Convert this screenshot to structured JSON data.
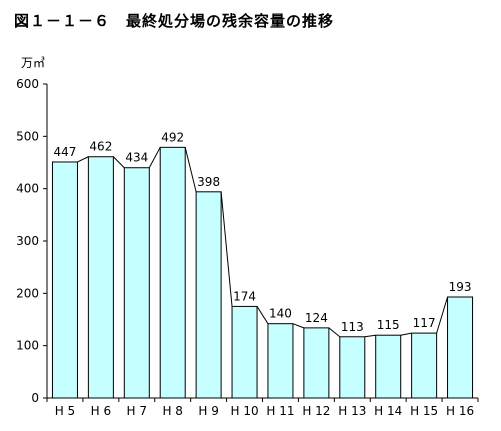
{
  "title": "図１－１－６　最終処分場の残余容量の推移",
  "chart_data": {
    "type": "bar",
    "title": "図１－１－６　最終処分場の残余容量の推移",
    "ylabel": "万㎥",
    "xlabel": "",
    "categories": [
      "H 5",
      "H 6",
      "H 7",
      "H 8",
      "H 9",
      "H 10",
      "H 11",
      "H 12",
      "H 13",
      "H 14",
      "H 15",
      "H 16"
    ],
    "values": [
      447,
      462,
      434,
      492,
      398,
      174,
      140,
      124,
      113,
      115,
      117,
      193
    ],
    "bar_tops": [
      451,
      461,
      440,
      479,
      394,
      175,
      142,
      134,
      117,
      120,
      124,
      193
    ],
    "ylim": [
      0,
      600
    ],
    "yticks": [
      0,
      100,
      200,
      300,
      400,
      500,
      600
    ],
    "grid": false,
    "bar_color": "#c6ffff",
    "edge_color": "#000000"
  }
}
